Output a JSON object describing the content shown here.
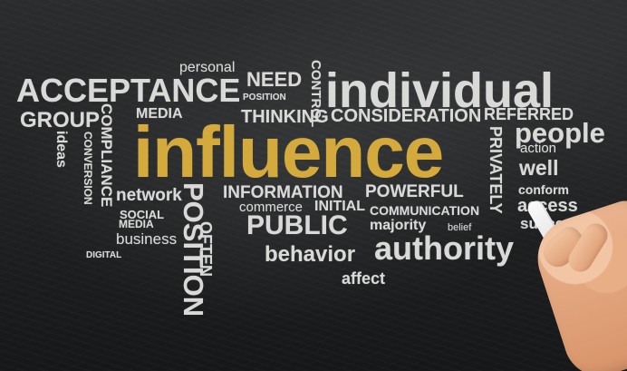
{
  "scene": {
    "background_color": "#1f2122",
    "chalk_color": "#d9d9d7",
    "accent_color": "#d4aa3d",
    "hand_present": true
  },
  "words": {
    "personal": "personal",
    "acceptance": "ACCEPTANCE",
    "need": "NEED",
    "position_small": "POSITION",
    "control": "CONTROL",
    "individual": "individual",
    "group": "GROUP",
    "media_top": "MEDIA",
    "thinking": "THINKING",
    "consideration": "CONSIDERATION",
    "referred": "REFERRED",
    "people": "people",
    "compliance": "COMPLIANCE",
    "ideas": "ideas",
    "conversion": "CONVERSION",
    "influence": "influence",
    "privately": "PRIVATELY",
    "action": "action",
    "well": "well",
    "conform": "conform",
    "access": "access",
    "success": "success",
    "network": "network",
    "position_big": "POSITION",
    "information": "INFORMATION",
    "powerful": "POWERFUL",
    "social": "SOCIAL",
    "media_bottom": "MEDIA",
    "business": "business",
    "digital": "DIGITAL",
    "commerce": "commerce",
    "initial": "INITIAL",
    "communication": "COMMUNICATION",
    "public": "PUBLIC",
    "majority": "majority",
    "belief": "belief",
    "authority": "authority",
    "behavior": "behavior",
    "affect": "affect",
    "often": "OFTEN"
  }
}
